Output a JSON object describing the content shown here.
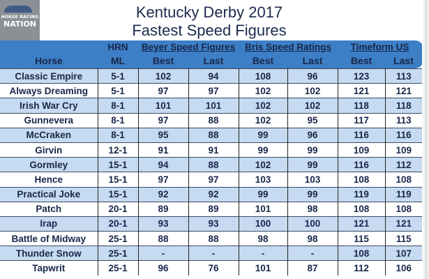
{
  "logo": {
    "line1": "HORSE RACING",
    "line2": "NATION"
  },
  "title": "Kentucky Derby 2017",
  "subtitle": "Fastest Speed Figures",
  "header": {
    "hrn": "HRN",
    "groups": [
      "Beyer Speed Figures",
      "Bris Speed Ratings",
      "Timeform US"
    ],
    "columns": [
      "Horse",
      "ML",
      "Best",
      "Last",
      "Best",
      "Last",
      "Best",
      "Last"
    ]
  },
  "rows": [
    [
      "Classic Empire",
      "5-1",
      "102",
      "94",
      "108",
      "96",
      "123",
      "113"
    ],
    [
      "Always Dreaming",
      "5-1",
      "97",
      "97",
      "102",
      "102",
      "121",
      "121"
    ],
    [
      "Irish War Cry",
      "8-1",
      "101",
      "101",
      "102",
      "102",
      "118",
      "118"
    ],
    [
      "Gunnevera",
      "8-1",
      "97",
      "88",
      "102",
      "95",
      "117",
      "113"
    ],
    [
      "McCraken",
      "8-1",
      "95",
      "88",
      "99",
      "96",
      "116",
      "116"
    ],
    [
      "Girvin",
      "12-1",
      "91",
      "91",
      "99",
      "99",
      "109",
      "109"
    ],
    [
      "Gormley",
      "15-1",
      "94",
      "88",
      "102",
      "99",
      "116",
      "112"
    ],
    [
      "Hence",
      "15-1",
      "97",
      "97",
      "103",
      "103",
      "108",
      "108"
    ],
    [
      "Practical Joke",
      "15-1",
      "92",
      "92",
      "99",
      "99",
      "119",
      "119"
    ],
    [
      "Patch",
      "20-1",
      "89",
      "89",
      "101",
      "98",
      "108",
      "108"
    ],
    [
      "Irap",
      "20-1",
      "93",
      "93",
      "100",
      "100",
      "121",
      "121"
    ],
    [
      "Battle of Midway",
      "25-1",
      "88",
      "88",
      "98",
      "98",
      "115",
      "115"
    ],
    [
      "Thunder Snow",
      "25-1",
      "-",
      "-",
      "-",
      "-",
      "108",
      "107"
    ],
    [
      "Tapwrit",
      "25-1",
      "96",
      "76",
      "101",
      "87",
      "112",
      "106"
    ]
  ]
}
